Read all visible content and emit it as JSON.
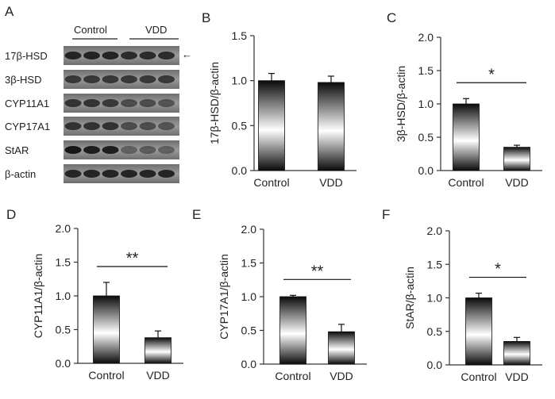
{
  "figure": {
    "panels": [
      "A",
      "B",
      "C",
      "D",
      "E",
      "F"
    ]
  },
  "blot": {
    "panel": "A",
    "groups": [
      "Control",
      "VDD"
    ],
    "rows": [
      "17β-HSD",
      "3β-HSD",
      "CYP11A1",
      "CYP17A1",
      "StAR",
      "β-actin"
    ],
    "arrow_row": "17β-HSD",
    "arrow": "←"
  },
  "colors": {
    "bar_dark": "#0a0a0a",
    "bar_light": "#ffffff",
    "axis": "#333333"
  },
  "chart_data": [
    {
      "panel": "B",
      "type": "bar",
      "categories": [
        "Control",
        "VDD"
      ],
      "values": [
        1.0,
        0.98
      ],
      "errors": [
        0.08,
        0.07
      ],
      "ylabel": "17β-HSD/β-actin",
      "ylim": [
        0,
        1.5
      ],
      "yticks": [
        "0.0",
        "0.5",
        "1.0",
        "1.5"
      ],
      "significance": ""
    },
    {
      "panel": "C",
      "type": "bar",
      "categories": [
        "Control",
        "VDD"
      ],
      "values": [
        1.0,
        0.35
      ],
      "errors": [
        0.08,
        0.03
      ],
      "ylabel": "3β-HSD/β-actin",
      "ylim": [
        0,
        2.0
      ],
      "yticks": [
        "0.0",
        "0.5",
        "1.0",
        "1.5",
        "2.0"
      ],
      "significance": "*"
    },
    {
      "panel": "D",
      "type": "bar",
      "categories": [
        "Control",
        "VDD"
      ],
      "values": [
        1.0,
        0.38
      ],
      "errors": [
        0.2,
        0.1
      ],
      "ylabel": "CYP11A1/β-actin",
      "ylim": [
        0,
        2.0
      ],
      "yticks": [
        "0.0",
        "0.5",
        "1.0",
        "1.5",
        "2.0"
      ],
      "significance": "**"
    },
    {
      "panel": "E",
      "type": "bar",
      "categories": [
        "Control",
        "VDD"
      ],
      "values": [
        1.0,
        0.48
      ],
      "errors": [
        0.02,
        0.11
      ],
      "ylabel": "CYP17A1/β-actin",
      "ylim": [
        0,
        2.0
      ],
      "yticks": [
        "0.0",
        "0.5",
        "1.0",
        "1.5",
        "2.0"
      ],
      "significance": "**"
    },
    {
      "panel": "F",
      "type": "bar",
      "categories": [
        "Control",
        "VDD"
      ],
      "values": [
        1.0,
        0.35
      ],
      "errors": [
        0.07,
        0.06
      ],
      "ylabel": "StAR/β-actin",
      "ylim": [
        0,
        2.0
      ],
      "yticks": [
        "0.0",
        "0.5",
        "1.0",
        "1.5",
        "2.0"
      ],
      "significance": "*"
    }
  ]
}
